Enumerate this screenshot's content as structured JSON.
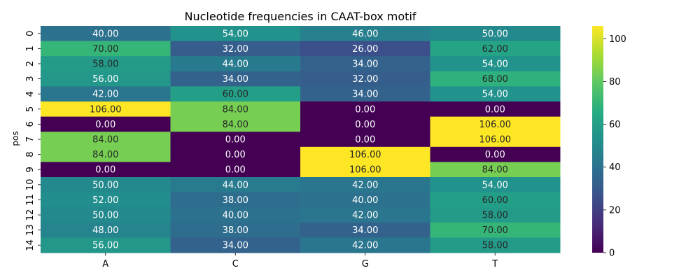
{
  "chart_data": {
    "type": "heatmap",
    "title": "Nucleotide frequencies in CAAT-box motif",
    "xlabel": "",
    "ylabel": "pos",
    "x_categories": [
      "A",
      "C",
      "G",
      "T"
    ],
    "y_categories": [
      "0",
      "1",
      "2",
      "3",
      "4",
      "5",
      "6",
      "7",
      "8",
      "9",
      "10",
      "11",
      "12",
      "13",
      "14"
    ],
    "values": [
      [
        40,
        54,
        46,
        50
      ],
      [
        70,
        32,
        26,
        62
      ],
      [
        58,
        44,
        34,
        54
      ],
      [
        56,
        34,
        32,
        68
      ],
      [
        42,
        60,
        34,
        54
      ],
      [
        106,
        84,
        0,
        0
      ],
      [
        0,
        84,
        0,
        106
      ],
      [
        84,
        0,
        0,
        106
      ],
      [
        84,
        0,
        106,
        0
      ],
      [
        0,
        0,
        106,
        84
      ],
      [
        50,
        44,
        42,
        54
      ],
      [
        52,
        38,
        40,
        60
      ],
      [
        50,
        40,
        42,
        58
      ],
      [
        48,
        38,
        34,
        70
      ],
      [
        56,
        34,
        42,
        58
      ]
    ],
    "value_format": "0.00",
    "colormap": "viridis",
    "vmin": 0,
    "vmax": 106,
    "colorbar_ticks": [
      0,
      20,
      40,
      60,
      80,
      100
    ]
  }
}
